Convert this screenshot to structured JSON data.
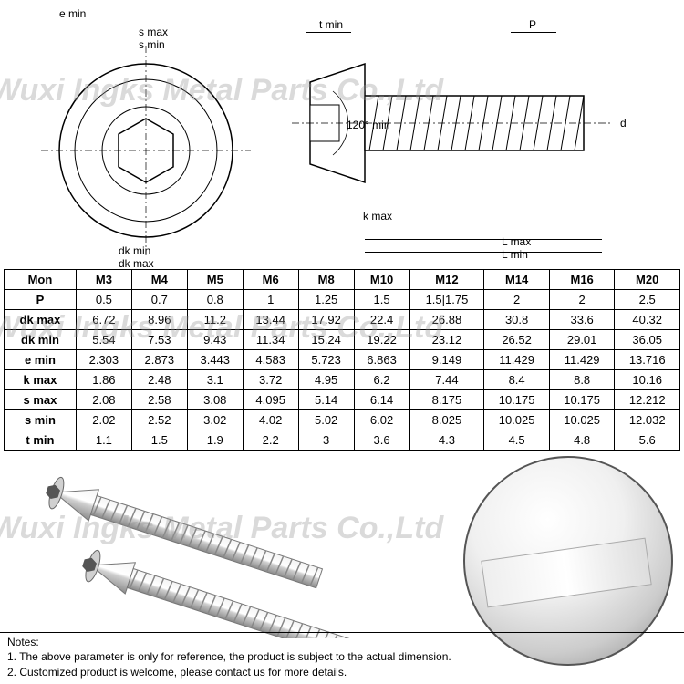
{
  "watermark_text": "Wuxi Ingks Metal Parts Co.,Ltd",
  "diagram": {
    "labels": {
      "e_min": "e min",
      "s_max": "s max",
      "s_min": "s min",
      "dk_min": "dk min",
      "dk_max": "dk max",
      "t_min": "t min",
      "p": "P",
      "d": "d",
      "k_max": "k max",
      "l_max": "L max",
      "l_min": "L min",
      "angle": "120° min"
    }
  },
  "table": {
    "columns": [
      "Mon",
      "M3",
      "M4",
      "M5",
      "M6",
      "M8",
      "M10",
      "M12",
      "M14",
      "M16",
      "M20"
    ],
    "rows": [
      {
        "head": "P",
        "cells": [
          "0.5",
          "0.7",
          "0.8",
          "1",
          "1.25",
          "1.5",
          "1.5|1.75",
          "2",
          "2",
          "2.5"
        ]
      },
      {
        "head": "dk max",
        "cells": [
          "6.72",
          "8.96",
          "11.2",
          "13.44",
          "17.92",
          "22.4",
          "26.88",
          "30.8",
          "33.6",
          "40.32"
        ]
      },
      {
        "head": "dk min",
        "cells": [
          "5.54",
          "7.53",
          "9.43",
          "11.34",
          "15.24",
          "19.22",
          "23.12",
          "26.52",
          "29.01",
          "36.05"
        ]
      },
      {
        "head": "e min",
        "cells": [
          "2.303",
          "2.873",
          "3.443",
          "4.583",
          "5.723",
          "6.863",
          "9.149",
          "11.429",
          "11.429",
          "13.716"
        ]
      },
      {
        "head": "k max",
        "cells": [
          "1.86",
          "2.48",
          "3.1",
          "3.72",
          "4.95",
          "6.2",
          "7.44",
          "8.4",
          "8.8",
          "10.16"
        ]
      },
      {
        "head": "s max",
        "cells": [
          "2.08",
          "2.58",
          "3.08",
          "4.095",
          "5.14",
          "6.14",
          "8.175",
          "10.175",
          "10.175",
          "12.212"
        ]
      },
      {
        "head": "s min",
        "cells": [
          "2.02",
          "2.52",
          "3.02",
          "4.02",
          "5.02",
          "6.02",
          "8.025",
          "10.025",
          "10.025",
          "12.032"
        ]
      },
      {
        "head": "t min",
        "cells": [
          "1.1",
          "1.5",
          "1.9",
          "2.2",
          "3",
          "3.6",
          "4.3",
          "4.5",
          "4.8",
          "5.6"
        ]
      }
    ],
    "header_fontsize": 13,
    "cell_fontsize": 13,
    "border_color": "#000000",
    "background_color": "#ffffff"
  },
  "notes": {
    "title": "Notes:",
    "line1": "1. The above parameter is only for reference, the product is subject to the actual dimension.",
    "line2": "2. Customized product is welcome, please contact us for more details."
  },
  "colors": {
    "watermark": "rgba(150,150,150,0.35)",
    "line": "#000000",
    "screw_metal_light": "#e8e8e8",
    "screw_metal_dark": "#9a9a9a"
  }
}
